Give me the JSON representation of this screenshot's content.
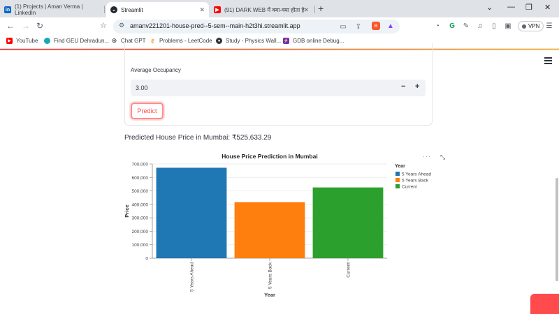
{
  "browser": {
    "tabs": [
      {
        "label": "(1) Projects | Aman Verma | LinkedIn",
        "icon": "linkedin-icon"
      },
      {
        "label": "Streamlit",
        "icon": "streamlit-icon"
      },
      {
        "label": "(91) DARK WEB में क्या-क्या होता है देख",
        "icon": "youtube-icon"
      }
    ],
    "url": "amanv221201-house-pred--5-sem--main-h2t3hi.streamlit.app",
    "vpn_label": "VPN",
    "bookmarks": [
      {
        "label": "YouTube",
        "icon": "youtube-icon"
      },
      {
        "label": "Find GEU Dehradun...",
        "icon": "hexagon-icon"
      },
      {
        "label": "Chat GPT",
        "icon": "openai-icon"
      },
      {
        "label": "Problems - LeetCode",
        "icon": "leetcode-icon"
      },
      {
        "label": "Study - Physics Wall...",
        "icon": "physics-icon"
      },
      {
        "label": "GDB online Debug...",
        "icon": "gdb-icon"
      }
    ]
  },
  "form": {
    "occupancy_label": "Average Occupancy",
    "occupancy_value": "3.00",
    "minus": "−",
    "plus": "+",
    "predict_label": "Predict"
  },
  "result": {
    "text": "Predicted House Price in Mumbai: ₹525,633.29"
  },
  "colors": {
    "accent": "#ff4b4b",
    "bar_blue": "#1f77b4",
    "bar_orange": "#ff7f0e",
    "bar_green": "#2ca02c"
  },
  "chart_data": {
    "type": "bar",
    "title": "House Price Prediction in Mumbai",
    "xlabel": "Year",
    "ylabel": "Price",
    "categories": [
      "5 Years Ahead",
      "5 Years Back",
      "Current"
    ],
    "values": [
      672000,
      416000,
      525633.29
    ],
    "colors": [
      "#1f77b4",
      "#ff7f0e",
      "#2ca02c"
    ],
    "ylim": [
      0,
      700000
    ],
    "yticks": [
      0,
      100000,
      200000,
      300000,
      400000,
      500000,
      600000,
      700000
    ],
    "ytick_labels": [
      "0",
      "100,000",
      "200,000",
      "300,000",
      "400,000",
      "500,000",
      "600,000",
      "700,000"
    ],
    "grid": true,
    "legend": {
      "title": "Year",
      "position": "right",
      "entries": [
        "5 Years Ahead",
        "5 Years Back",
        "Current"
      ]
    }
  }
}
